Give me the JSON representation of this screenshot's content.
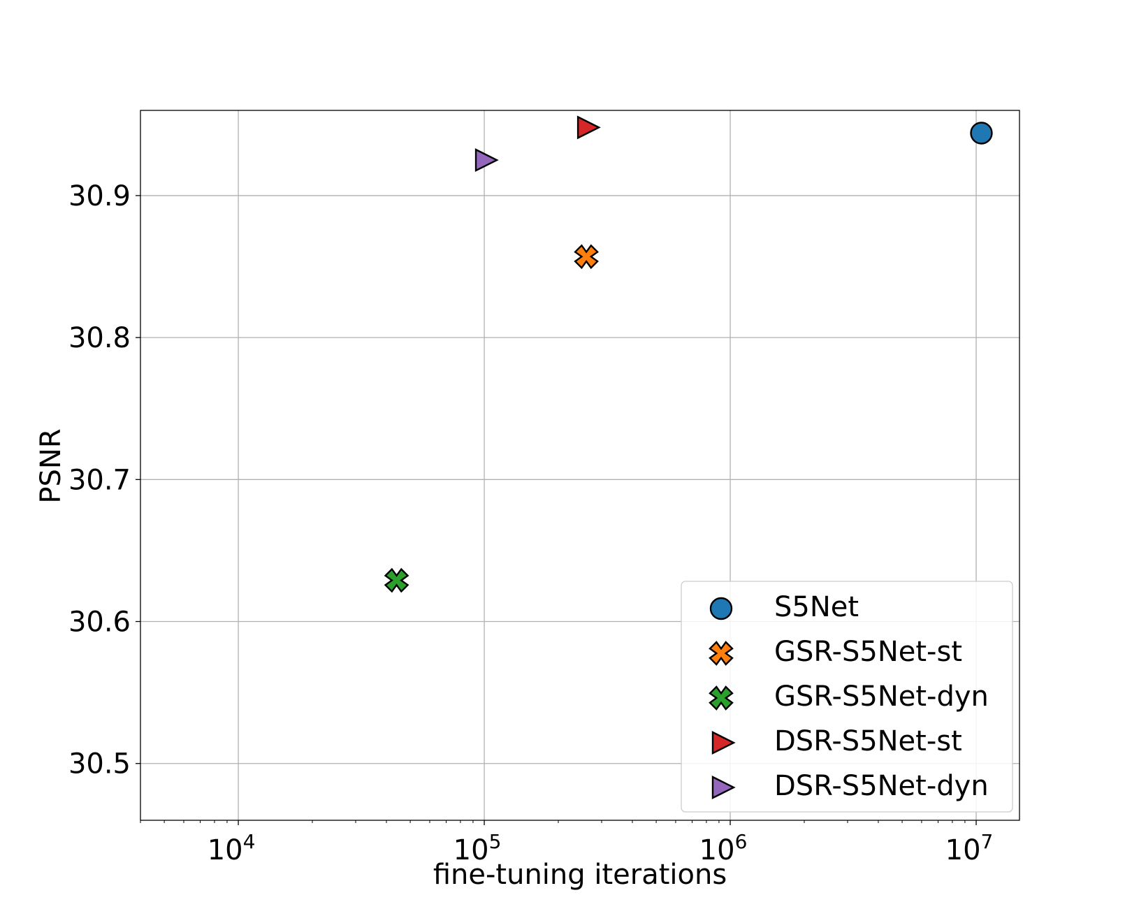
{
  "chart_data": {
    "type": "scatter",
    "title": "",
    "xlabel": "fine-tuning iterations",
    "ylabel": "PSNR",
    "xscale": "log",
    "xlim": [
      4000,
      15000000
    ],
    "ylim": [
      30.46,
      30.96
    ],
    "xticks": [
      {
        "value": 10000,
        "base": "10",
        "exp": "4"
      },
      {
        "value": 100000,
        "base": "10",
        "exp": "5"
      },
      {
        "value": 1000000,
        "base": "10",
        "exp": "6"
      },
      {
        "value": 10000000,
        "base": "10",
        "exp": "7"
      }
    ],
    "yticks": [
      {
        "value": 30.5,
        "label": "30.5"
      },
      {
        "value": 30.6,
        "label": "30.6"
      },
      {
        "value": 30.7,
        "label": "30.7"
      },
      {
        "value": 30.8,
        "label": "30.8"
      },
      {
        "value": 30.9,
        "label": "30.9"
      }
    ],
    "grid": true,
    "legend_position": "lower-right",
    "series": [
      {
        "name": "S5Net",
        "marker": "circle",
        "color": "#1f77b4",
        "x": [
          10500000
        ],
        "y": [
          30.944
        ]
      },
      {
        "name": "GSR-S5Net-st",
        "marker": "x-filled",
        "color": "#ff7f0e",
        "x": [
          260000
        ],
        "y": [
          30.857
        ]
      },
      {
        "name": "GSR-S5Net-dyn",
        "marker": "x-filled",
        "color": "#2ca02c",
        "x": [
          44000
        ],
        "y": [
          30.629
        ]
      },
      {
        "name": "DSR-S5Net-st",
        "marker": "triangle-right",
        "color": "#d62728",
        "x": [
          260000
        ],
        "y": [
          30.948
        ]
      },
      {
        "name": "DSR-S5Net-dyn",
        "marker": "triangle-right",
        "color": "#9467bd",
        "x": [
          100000
        ],
        "y": [
          30.925
        ]
      }
    ]
  }
}
